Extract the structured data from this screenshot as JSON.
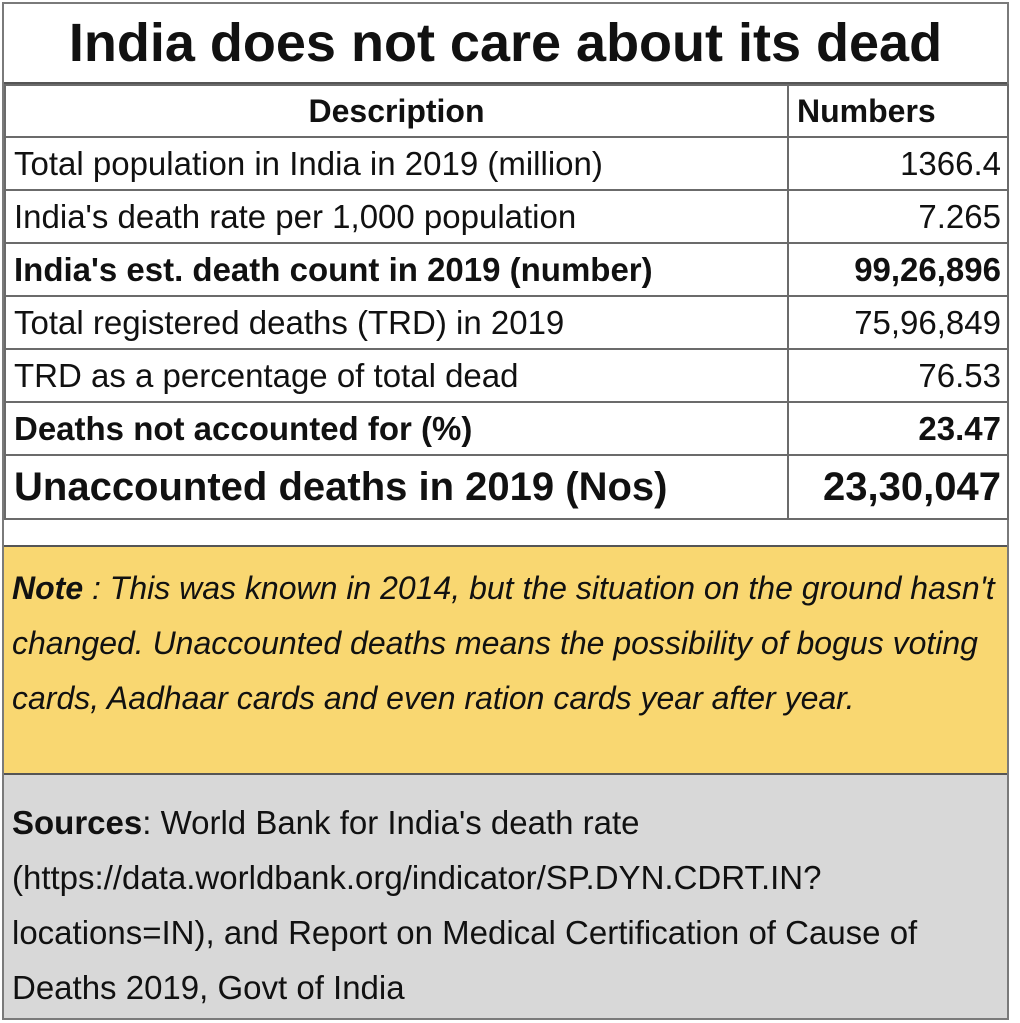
{
  "title": "India does not care about its dead",
  "table": {
    "headers": {
      "description": "Description",
      "numbers": "Numbers"
    },
    "rows": [
      {
        "description": "Total population in India in 2019 (million)",
        "value": "1366.4"
      },
      {
        "description": "India's death rate per 1,000 population",
        "value": "7.265"
      },
      {
        "description": "India's est. death count in 2019 (number)",
        "value": "99,26,896"
      },
      {
        "description": "Total registered deaths (TRD) in 2019",
        "value": "75,96,849"
      },
      {
        "description": "TRD as a percentage of total dead",
        "value": "76.53"
      },
      {
        "description": "Deaths not accounted for (%)",
        "value": "23.47"
      },
      {
        "description": "Unaccounted deaths in 2019 (Nos)",
        "value": "23,30,047"
      }
    ]
  },
  "note": {
    "label": "Note",
    "text": " : This was known in 2014, but the situation on the ground hasn't changed.  Unaccounted deaths means the possibility of bogus voting cards, Aadhaar cards and even ration cards year after year."
  },
  "sources": {
    "label": "Sources",
    "text": ": World Bank for India's death rate (https://data.worldbank.org/indicator/SP.DYN.CDRT.IN?locations=IN), and Report on Medical Certification of Cause of Deaths   2019, Govt of India"
  },
  "colors": {
    "note_bg": "#f9d771",
    "sources_bg": "#d8d8d8"
  }
}
